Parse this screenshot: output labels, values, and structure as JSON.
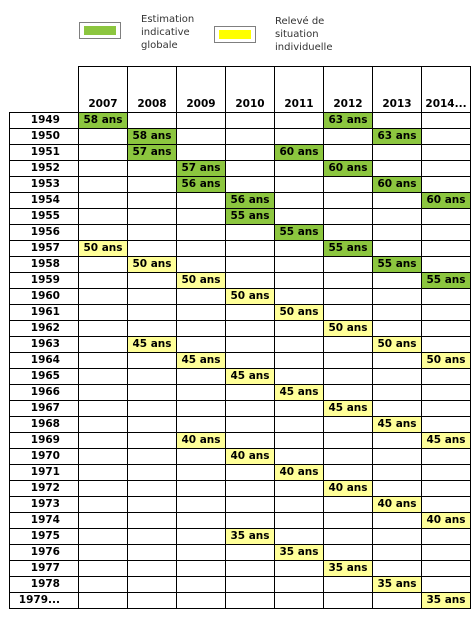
{
  "legend": {
    "items": [
      {
        "label": "Estimation\nindicative\nglobale",
        "color": "#8cc63f"
      },
      {
        "label": "Relevé de\nsituation\nindividuelle",
        "color": "#ffff00"
      }
    ]
  },
  "colors": {
    "green": "#8cc63f",
    "yellow": "#ffff99"
  },
  "columns": [
    "2007",
    "2008",
    "2009",
    "2010",
    "2011",
    "2012",
    "2013",
    "2014..."
  ],
  "rows": [
    {
      "year": "1949",
      "cells": [
        {
          "col": 0,
          "text": "58 ans",
          "type": "green"
        },
        {
          "col": 5,
          "text": "63 ans",
          "type": "green"
        }
      ]
    },
    {
      "year": "1950",
      "cells": [
        {
          "col": 1,
          "text": "58 ans",
          "type": "green"
        },
        {
          "col": 6,
          "text": "63 ans",
          "type": "green"
        }
      ]
    },
    {
      "year": "1951",
      "cells": [
        {
          "col": 1,
          "text": "57 ans",
          "type": "green"
        },
        {
          "col": 4,
          "text": "60 ans",
          "type": "green"
        }
      ]
    },
    {
      "year": "1952",
      "cells": [
        {
          "col": 2,
          "text": "57 ans",
          "type": "green"
        },
        {
          "col": 5,
          "text": "60 ans",
          "type": "green"
        }
      ]
    },
    {
      "year": "1953",
      "cells": [
        {
          "col": 2,
          "text": "56 ans",
          "type": "green"
        },
        {
          "col": 6,
          "text": "60 ans",
          "type": "green"
        }
      ]
    },
    {
      "year": "1954",
      "cells": [
        {
          "col": 3,
          "text": "56 ans",
          "type": "green"
        },
        {
          "col": 7,
          "text": "60 ans",
          "type": "green"
        }
      ]
    },
    {
      "year": "1955",
      "cells": [
        {
          "col": 3,
          "text": "55 ans",
          "type": "green"
        }
      ]
    },
    {
      "year": "1956",
      "cells": [
        {
          "col": 4,
          "text": "55 ans",
          "type": "green"
        }
      ]
    },
    {
      "year": "1957",
      "cells": [
        {
          "col": 0,
          "text": "50 ans",
          "type": "yellow"
        },
        {
          "col": 5,
          "text": "55 ans",
          "type": "green"
        }
      ]
    },
    {
      "year": "1958",
      "cells": [
        {
          "col": 1,
          "text": "50 ans",
          "type": "yellow"
        },
        {
          "col": 6,
          "text": "55 ans",
          "type": "green"
        }
      ]
    },
    {
      "year": "1959",
      "cells": [
        {
          "col": 2,
          "text": "50 ans",
          "type": "yellow"
        },
        {
          "col": 7,
          "text": "55 ans",
          "type": "green"
        }
      ]
    },
    {
      "year": "1960",
      "cells": [
        {
          "col": 3,
          "text": "50 ans",
          "type": "yellow"
        }
      ]
    },
    {
      "year": "1961",
      "cells": [
        {
          "col": 4,
          "text": "50 ans",
          "type": "yellow"
        }
      ]
    },
    {
      "year": "1962",
      "cells": [
        {
          "col": 5,
          "text": "50 ans",
          "type": "yellow"
        }
      ]
    },
    {
      "year": "1963",
      "cells": [
        {
          "col": 1,
          "text": "45 ans",
          "type": "yellow"
        },
        {
          "col": 6,
          "text": "50 ans",
          "type": "yellow"
        }
      ]
    },
    {
      "year": "1964",
      "cells": [
        {
          "col": 2,
          "text": "45 ans",
          "type": "yellow"
        },
        {
          "col": 7,
          "text": "50 ans",
          "type": "yellow"
        }
      ]
    },
    {
      "year": "1965",
      "cells": [
        {
          "col": 3,
          "text": "45 ans",
          "type": "yellow"
        }
      ]
    },
    {
      "year": "1966",
      "cells": [
        {
          "col": 4,
          "text": "45 ans",
          "type": "yellow"
        }
      ]
    },
    {
      "year": "1967",
      "cells": [
        {
          "col": 5,
          "text": "45 ans",
          "type": "yellow"
        }
      ]
    },
    {
      "year": "1968",
      "cells": [
        {
          "col": 6,
          "text": "45 ans",
          "type": "yellow"
        }
      ]
    },
    {
      "year": "1969",
      "cells": [
        {
          "col": 2,
          "text": "40 ans",
          "type": "yellow"
        },
        {
          "col": 7,
          "text": "45 ans",
          "type": "yellow"
        }
      ]
    },
    {
      "year": "1970",
      "cells": [
        {
          "col": 3,
          "text": "40 ans",
          "type": "yellow"
        }
      ]
    },
    {
      "year": "1971",
      "cells": [
        {
          "col": 4,
          "text": "40 ans",
          "type": "yellow"
        }
      ]
    },
    {
      "year": "1972",
      "cells": [
        {
          "col": 5,
          "text": "40 ans",
          "type": "yellow"
        }
      ]
    },
    {
      "year": "1973",
      "cells": [
        {
          "col": 6,
          "text": "40 ans",
          "type": "yellow"
        }
      ]
    },
    {
      "year": "1974",
      "cells": [
        {
          "col": 7,
          "text": "40 ans",
          "type": "yellow"
        }
      ]
    },
    {
      "year": "1975",
      "cells": [
        {
          "col": 3,
          "text": "35 ans",
          "type": "yellow"
        }
      ]
    },
    {
      "year": "1976",
      "cells": [
        {
          "col": 4,
          "text": "35 ans",
          "type": "yellow"
        }
      ]
    },
    {
      "year": "1977",
      "cells": [
        {
          "col": 5,
          "text": "35 ans",
          "type": "yellow"
        }
      ]
    },
    {
      "year": "1978",
      "cells": [
        {
          "col": 6,
          "text": "35 ans",
          "type": "yellow"
        }
      ]
    },
    {
      "year": "1979...",
      "cells": [
        {
          "col": 7,
          "text": "35 ans",
          "type": "yellow"
        }
      ]
    }
  ]
}
